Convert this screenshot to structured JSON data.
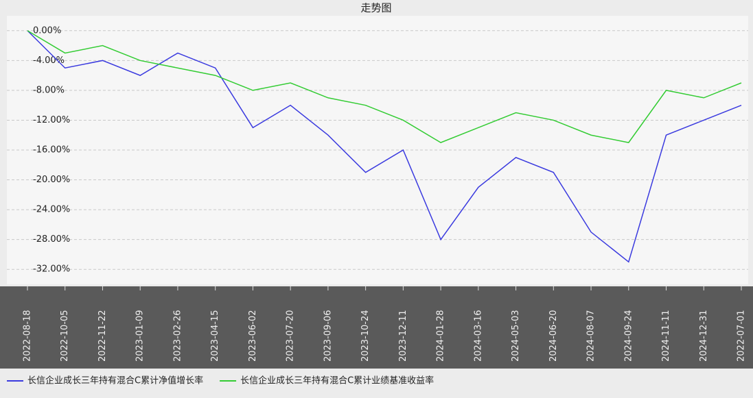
{
  "chart_data": {
    "type": "line",
    "title": "走势图",
    "categories": [
      "2022-08-18",
      "2022-10-05",
      "2022-11-22",
      "2023-01-09",
      "2023-02-26",
      "2023-04-15",
      "2023-06-02",
      "2023-07-20",
      "2023-09-06",
      "2023-10-24",
      "2023-12-11",
      "2024-01-28",
      "2024-03-16",
      "2024-05-03",
      "2024-06-20",
      "2024-08-07",
      "2024-09-24",
      "2024-11-11",
      "2024-12-31",
      "2022-07-01"
    ],
    "series": [
      {
        "name": "长信企业成长三年持有混合C累计净值增长率",
        "color": "#3a3adf",
        "values": [
          0,
          -5,
          -4,
          -6,
          -3,
          -5,
          -13,
          -10,
          -14,
          -19,
          -16,
          -28,
          -21,
          -17,
          -19,
          -27,
          -31,
          -14,
          -12,
          -10
        ]
      },
      {
        "name": "长信企业成长三年持有混合C累计业绩基准收益率",
        "color": "#33cc33",
        "values": [
          0,
          -3,
          -2,
          -4,
          -5,
          -6,
          -8,
          -7,
          -9,
          -10,
          -12,
          -15,
          -13,
          -11,
          -12,
          -14,
          -15,
          -8,
          -9,
          -7
        ]
      }
    ],
    "ylim": [
      -34,
      2
    ],
    "yticks": [
      {
        "value": 0,
        "label": "0.00%"
      },
      {
        "value": -4,
        "label": "-4.00%"
      },
      {
        "value": -8,
        "label": "-8.00%"
      },
      {
        "value": -12,
        "label": "-12.00%"
      },
      {
        "value": -16,
        "label": "-16.00%"
      },
      {
        "value": -20,
        "label": "-20.00%"
      },
      {
        "value": -24,
        "label": "-24.00%"
      },
      {
        "value": -28,
        "label": "-28.00%"
      },
      {
        "value": -32,
        "label": "-32.00%"
      }
    ],
    "grid": true
  }
}
